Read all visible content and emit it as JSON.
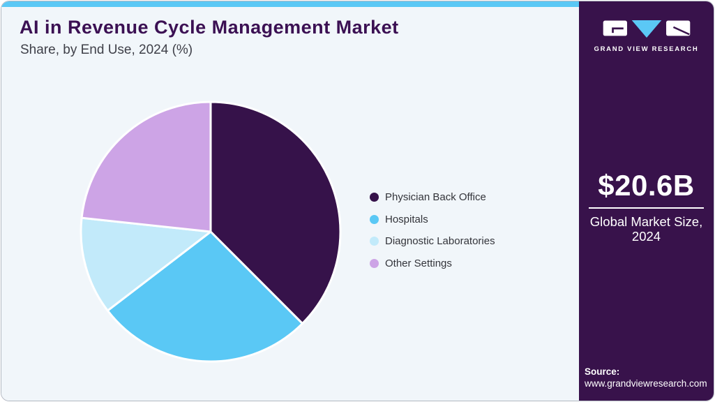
{
  "theme": {
    "accent": "#5bc8f5",
    "main_bg": "#f1f6fa",
    "sidebar_bg": "#38124b",
    "card_border": "#b3b8c2",
    "title_color": "#3b1053",
    "subtitle_color": "#3f4049",
    "legend_text_color": "#33343a",
    "sidebar_text_color": "#ffffff",
    "slice_separator": "#ffffff"
  },
  "header": {
    "title": "AI in Revenue Cycle Management Market",
    "subtitle": "Share, by End Use, 2024 (%)"
  },
  "chart_data": {
    "type": "pie",
    "title": "AI in Revenue Cycle Management Market Share, by End Use, 2024 (%)",
    "unit": "percent",
    "start_angle_deg": 0,
    "direction": "clockwise",
    "legend_position": "right",
    "series": [
      {
        "name": "Physician Back Office",
        "value": 37.5,
        "color": "#36124a"
      },
      {
        "name": "Hospitals",
        "value": 27.1,
        "color": "#5ac8f5"
      },
      {
        "name": "Diagnostic Laboratories",
        "value": 12.1,
        "color": "#c2eafa"
      },
      {
        "name": "Other Settings",
        "value": 23.3,
        "color": "#cda4e6"
      }
    ]
  },
  "sidebar": {
    "logo": {
      "brand": "GRAND VIEW RESEARCH",
      "square_color": "#ffffff",
      "triangle_color": "#5bc8f5"
    },
    "market_size": {
      "value": "$20.6B",
      "label_lines": [
        "Global Market Size,",
        "2024"
      ]
    },
    "source": {
      "label": "Source:",
      "url": "www.grandviewresearch.com"
    }
  }
}
